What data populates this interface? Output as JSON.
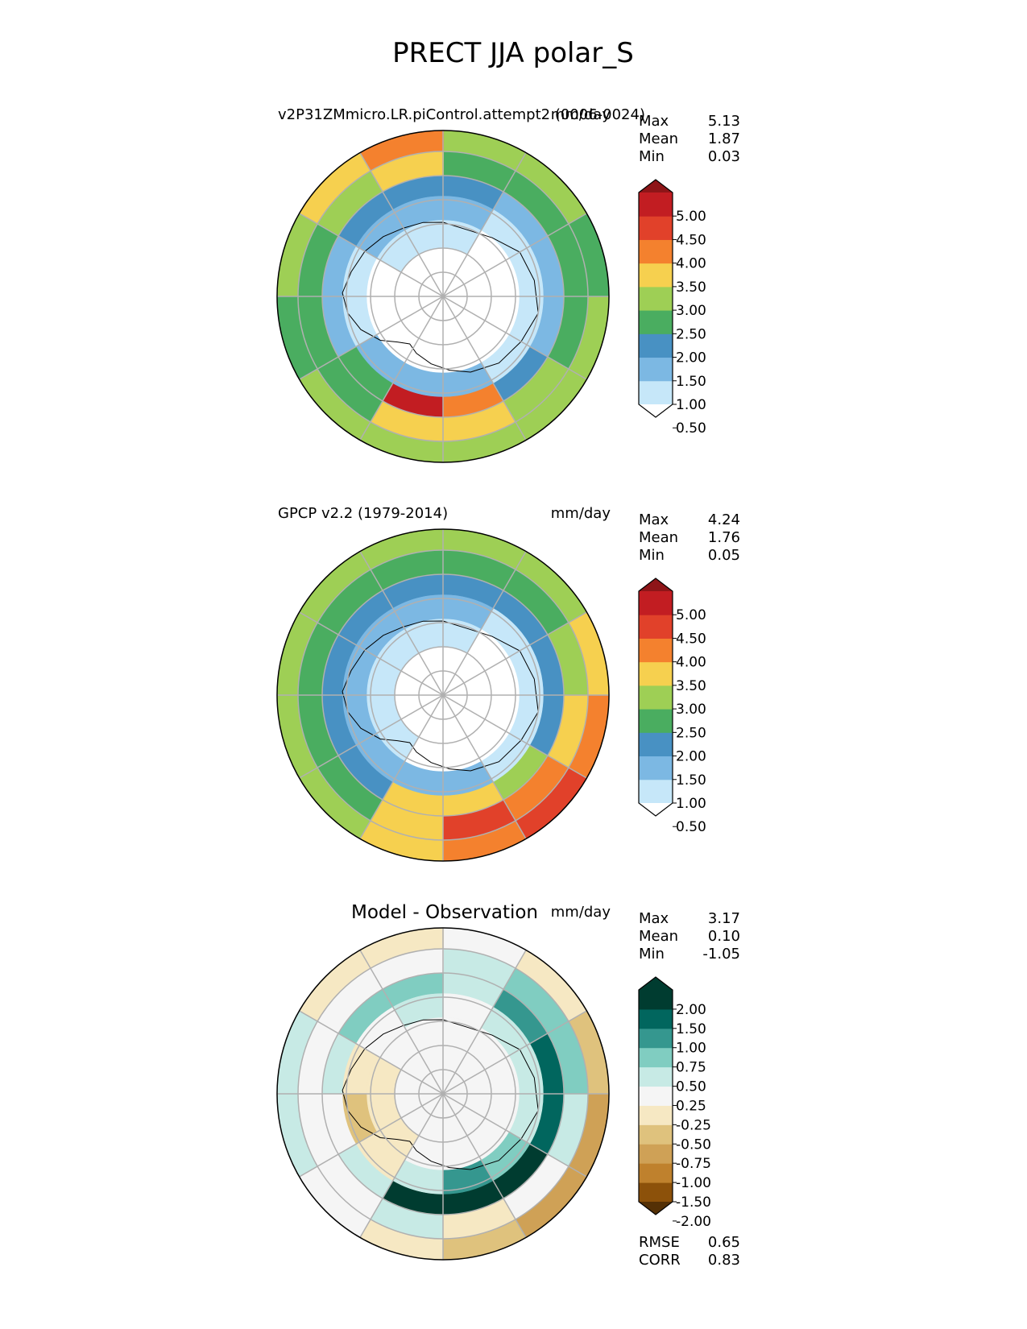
{
  "page_title": "PRECT JJA polar_S",
  "chart_data": [
    {
      "type": "heatmap",
      "projection": "south-polar-stereographic",
      "title_left": "v2P31ZMmicro.LR.piControl.attempt2 (0006-0024)",
      "title_center": "",
      "units": "mm/day",
      "stats": [
        {
          "label": "Max",
          "value": "5.13"
        },
        {
          "label": "Mean",
          "value": "1.87"
        },
        {
          "label": "Min",
          "value": "0.03"
        }
      ],
      "colorbar": {
        "ticks": [
          "0.50",
          "1.00",
          "1.50",
          "2.00",
          "2.50",
          "3.00",
          "3.50",
          "4.00",
          "4.50",
          "5.00"
        ],
        "colors": [
          "#ffffff",
          "#c6e7f9",
          "#7cb8e3",
          "#4891c3",
          "#4aad60",
          "#9ecf55",
          "#f6d04f",
          "#f4812e",
          "#e1412a",
          "#c21d22",
          "#8e1518"
        ]
      },
      "field": {
        "ring_values": [
          [
            0.3,
            0.3,
            0.3,
            0.3,
            0.3,
            0.3,
            0.3,
            0.3,
            0.3,
            0.3,
            0.3,
            0.3
          ],
          [
            0.6,
            0.4,
            0.3,
            0.3,
            0.3,
            0.3,
            0.3,
            0.3,
            0.3,
            0.4,
            0.6,
            0.8
          ],
          [
            1.2,
            0.9,
            0.7,
            0.6,
            0.7,
            1.0,
            1.3,
            1.0,
            0.8,
            0.9,
            1.2,
            1.4
          ],
          [
            1.6,
            1.4,
            1.3,
            1.4,
            1.8,
            3.5,
            4.5,
            2.0,
            1.3,
            1.4,
            1.7,
            1.9
          ],
          [
            2.2,
            2.0,
            2.0,
            2.2,
            2.5,
            3.0,
            3.0,
            2.2,
            2.0,
            2.2,
            2.6,
            3.2
          ],
          [
            2.6,
            2.5,
            2.4,
            2.6,
            2.6,
            2.8,
            2.9,
            2.5,
            2.4,
            2.6,
            3.0,
            3.8
          ]
        ]
      },
      "stats_extra": []
    },
    {
      "type": "heatmap",
      "projection": "south-polar-stereographic",
      "title_left": "GPCP v2.2 (1979-2014)",
      "title_center": "",
      "units": "mm/day",
      "stats": [
        {
          "label": "Max",
          "value": "4.24"
        },
        {
          "label": "Mean",
          "value": "1.76"
        },
        {
          "label": "Min",
          "value": "0.05"
        }
      ],
      "colorbar": {
        "ticks": [
          "0.50",
          "1.00",
          "1.50",
          "2.00",
          "2.50",
          "3.00",
          "3.50",
          "4.00",
          "4.50",
          "5.00"
        ],
        "colors": [
          "#ffffff",
          "#c6e7f9",
          "#7cb8e3",
          "#4891c3",
          "#4aad60",
          "#9ecf55",
          "#f6d04f",
          "#f4812e",
          "#e1412a",
          "#c21d22",
          "#8e1518"
        ]
      },
      "field": {
        "ring_values": [
          [
            0.3,
            0.3,
            0.3,
            0.3,
            0.3,
            0.3,
            0.3,
            0.3,
            0.3,
            0.3,
            0.3,
            0.3
          ],
          [
            0.7,
            0.4,
            0.3,
            0.3,
            0.3,
            0.3,
            0.4,
            0.5,
            0.8,
            0.9,
            0.8,
            0.8
          ],
          [
            1.2,
            0.9,
            0.8,
            0.8,
            0.9,
            1.0,
            1.2,
            1.3,
            1.4,
            1.3,
            1.2,
            1.2
          ],
          [
            1.6,
            1.5,
            1.6,
            1.8,
            2.6,
            3.2,
            3.2,
            1.8,
            1.6,
            1.5,
            1.5,
            1.5
          ],
          [
            2.0,
            2.2,
            2.5,
            3.2,
            3.8,
            4.2,
            3.4,
            2.4,
            2.2,
            2.2,
            2.0,
            2.0
          ],
          [
            2.6,
            2.8,
            3.2,
            3.6,
            4.0,
            3.8,
            3.2,
            2.8,
            2.7,
            2.8,
            2.8,
            2.7
          ]
        ]
      },
      "stats_extra": []
    },
    {
      "type": "heatmap",
      "projection": "south-polar-stereographic",
      "title_left": "",
      "title_center": "Model - Observation",
      "units": "mm/day",
      "stats": [
        {
          "label": "Max",
          "value": "3.17"
        },
        {
          "label": "Mean",
          "value": "0.10"
        },
        {
          "label": "Min",
          "value": "-1.05"
        }
      ],
      "colorbar": {
        "ticks": [
          "-2.00",
          "-1.50",
          "-1.00",
          "-0.75",
          "-0.50",
          "-0.25",
          "0.25",
          "0.50",
          "0.75",
          "1.00",
          "1.50",
          "2.00"
        ],
        "colors": [
          "#543005",
          "#8c510a",
          "#bf812d",
          "#cfa156",
          "#dfc27d",
          "#f6e8c3",
          "#f5f5f5",
          "#c7eae5",
          "#80cdc1",
          "#35978f",
          "#01665e",
          "#003c30",
          "#003c30"
        ]
      },
      "field": {
        "ring_values": [
          [
            0.0,
            0.0,
            0.0,
            0.0,
            0.0,
            0.0,
            0.0,
            0.0,
            0.0,
            0.0,
            0.0,
            0.0
          ],
          [
            0.0,
            0.0,
            0.0,
            0.0,
            0.0,
            0.0,
            0.0,
            -0.3,
            -0.4,
            -0.3,
            0.0,
            0.0
          ],
          [
            0.2,
            0.3,
            0.3,
            0.3,
            0.5,
            0.8,
            0.4,
            -0.3,
            -0.6,
            -0.4,
            0.0,
            0.3
          ],
          [
            0.4,
            0.8,
            1.2,
            1.4,
            1.6,
            2.2,
            1.8,
            0.3,
            0.0,
            0.3,
            0.5,
            0.5
          ],
          [
            0.3,
            0.5,
            0.6,
            0.3,
            0.1,
            -0.3,
            0.4,
            0.2,
            0.1,
            0.1,
            0.0,
            0.2
          ],
          [
            -0.2,
            -0.3,
            -0.6,
            -0.8,
            -0.9,
            -0.6,
            -0.3,
            -0.2,
            0.3,
            0.4,
            -0.3,
            -0.3
          ]
        ]
      },
      "stats_extra": [
        {
          "label": "RMSE",
          "value": "0.65"
        },
        {
          "label": "CORR",
          "value": "0.83"
        }
      ]
    }
  ]
}
